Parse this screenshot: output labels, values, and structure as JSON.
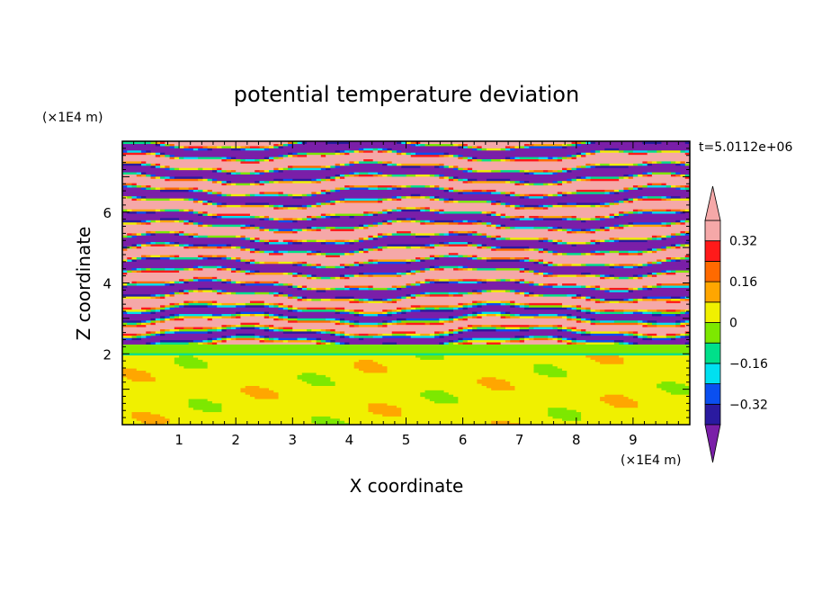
{
  "chart_data": {
    "type": "heatmap",
    "title": "potential temperature deviation",
    "xlabel": "X coordinate",
    "ylabel": "Z coordinate",
    "x_unit": "(×1E4 m)",
    "y_unit": "(×1E4 m)",
    "time_label": "t=5.0112e+06",
    "xlim": [
      0,
      10
    ],
    "ylim": [
      0,
      8
    ],
    "x_ticks": [
      1,
      2,
      3,
      4,
      5,
      6,
      7,
      8,
      9
    ],
    "y_ticks": [
      2,
      4,
      6
    ],
    "colorbar": {
      "levels": [
        -0.4,
        -0.32,
        -0.24,
        -0.16,
        -0.08,
        0,
        0.08,
        0.16,
        0.24,
        0.32,
        0.4
      ],
      "tick_labels": [
        {
          "value": 0.32,
          "label": "0.32"
        },
        {
          "value": 0.16,
          "label": "0.16"
        },
        {
          "value": 0,
          "label": "0"
        },
        {
          "value": -0.16,
          "label": "−0.16"
        },
        {
          "value": -0.32,
          "label": "−0.32"
        }
      ],
      "colors": [
        "#7a1fa8",
        "#2a1aa0",
        "#0a4ff0",
        "#00e0f0",
        "#00e08a",
        "#7de800",
        "#f0f000",
        "#ffa600",
        "#ff6a00",
        "#ff1a1a",
        "#f5a8a8"
      ],
      "under_color": "#7a1fa8",
      "over_color": "#f5a8a8"
    }
  }
}
